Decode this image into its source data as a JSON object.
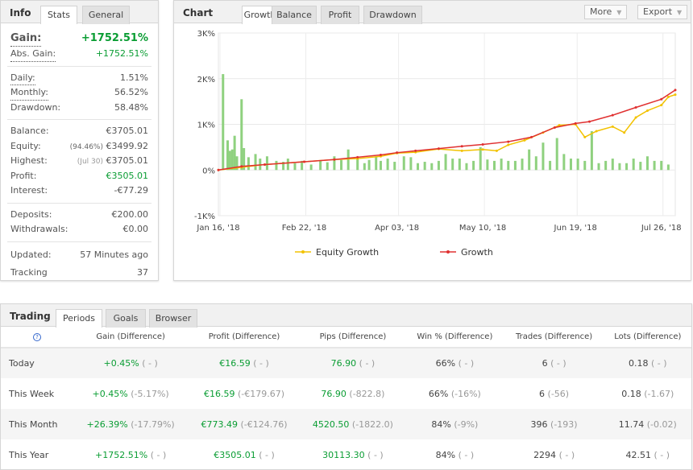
{
  "info": {
    "title": "Info",
    "tabs": [
      "Stats",
      "General"
    ],
    "gain_label": "Gain:",
    "gain": "+1752.51%",
    "abs_gain_label": "Abs. Gain:",
    "abs_gain": "+1752.51%",
    "daily_label": "Daily:",
    "daily": "1.51%",
    "monthly_label": "Monthly:",
    "monthly": "56.52%",
    "drawdown_label": "Drawdown:",
    "drawdown": "58.48%",
    "balance_label": "Balance:",
    "balance": "€3705.01",
    "equity_label": "Equity:",
    "equity_pct": "(94.46%)",
    "equity": "€3499.92",
    "highest_label": "Highest:",
    "highest_date": "(Jul 30)",
    "highest": "€3705.01",
    "profit_label": "Profit:",
    "profit": "€3505.01",
    "interest_label": "Interest:",
    "interest": "-€77.29",
    "deposits_label": "Deposits:",
    "deposits": "€200.00",
    "withdrawals_label": "Withdrawals:",
    "withdrawals": "€0.00",
    "updated_label": "Updated:",
    "updated": "57 Minutes ago",
    "tracking_label": "Tracking",
    "tracking": "37"
  },
  "chart": {
    "title": "Chart",
    "tabs": [
      "Growth",
      "Balance",
      "Profit",
      "Drawdown"
    ],
    "more": "More",
    "export": "Export"
  },
  "chart_data": {
    "type": "line",
    "ylim": [
      -1000,
      3000
    ],
    "yticks": [
      "3K%",
      "2K%",
      "1K%",
      "0%",
      "-1K%"
    ],
    "ytick_values": [
      3000,
      2000,
      1000,
      0,
      -1000
    ],
    "xticks": [
      "Jan 16, '18",
      "Feb 22, '18",
      "Apr 03, '18",
      "May 10, '18",
      "Jun 19, '18",
      "Jul 26, '18"
    ],
    "xtick_days": [
      0,
      37,
      77,
      114,
      154,
      191
    ],
    "xmax": 197,
    "colors": {
      "equity": "#f2c200",
      "growth": "#e03030",
      "bars": "#8fd17f"
    },
    "series": [
      {
        "name": "Equity Growth",
        "days": [
          0,
          10,
          20,
          37,
          50,
          60,
          70,
          77,
          85,
          95,
          105,
          114,
          120,
          125,
          132,
          140,
          147,
          154,
          158,
          163,
          170,
          175,
          180,
          185,
          191,
          194,
          197
        ],
        "values": [
          0,
          60,
          120,
          180,
          230,
          250,
          300,
          370,
          390,
          460,
          420,
          450,
          420,
          550,
          650,
          820,
          980,
          1000,
          720,
          850,
          950,
          820,
          1150,
          1300,
          1420,
          1600,
          1650
        ]
      },
      {
        "name": "Growth",
        "days": [
          0,
          10,
          20,
          37,
          50,
          60,
          70,
          77,
          85,
          95,
          105,
          114,
          125,
          135,
          145,
          154,
          160,
          170,
          180,
          191,
          197
        ],
        "values": [
          0,
          80,
          120,
          180,
          230,
          280,
          330,
          380,
          420,
          470,
          520,
          560,
          620,
          720,
          930,
          1020,
          1060,
          1200,
          1370,
          1550,
          1752
        ]
      }
    ],
    "bars": {
      "days": [
        2,
        4,
        5,
        6,
        7,
        8,
        10,
        11,
        13,
        16,
        18,
        21,
        25,
        28,
        30,
        33,
        36,
        40,
        44,
        47,
        50,
        53,
        56,
        60,
        63,
        65,
        68,
        70,
        73,
        76,
        80,
        83,
        86,
        89,
        92,
        95,
        98,
        101,
        104,
        107,
        110,
        113,
        116,
        119,
        122,
        125,
        128,
        131,
        134,
        137,
        140,
        143,
        146,
        149,
        152,
        155,
        158,
        161,
        164,
        167,
        170,
        173,
        176,
        179,
        182,
        185,
        188,
        191,
        194
      ],
      "values": [
        2100,
        650,
        420,
        450,
        750,
        300,
        1550,
        480,
        280,
        350,
        250,
        300,
        200,
        180,
        250,
        150,
        200,
        120,
        200,
        170,
        300,
        220,
        450,
        250,
        150,
        220,
        300,
        200,
        250,
        180,
        300,
        280,
        150,
        180,
        150,
        200,
        350,
        250,
        250,
        150,
        200,
        500,
        230,
        200,
        250,
        200,
        200,
        250,
        450,
        300,
        600,
        200,
        700,
        350,
        250,
        250,
        200,
        850,
        150,
        200,
        250,
        150,
        150,
        250,
        180,
        300,
        200,
        200,
        120
      ]
    },
    "legend": [
      "Equity Growth",
      "Growth"
    ]
  },
  "trading": {
    "title": "Trading",
    "tabs": [
      "Periods",
      "Goals",
      "Browser"
    ],
    "help": "?",
    "columns": [
      "Gain (Difference)",
      "Profit (Difference)",
      "Pips (Difference)",
      "Win % (Difference)",
      "Trades (Difference)",
      "Lots (Difference)"
    ],
    "rows": [
      {
        "period": "Today",
        "gain": "+0.45%",
        "gain_d": "( - )",
        "profit": "€16.59",
        "profit_d": "( - )",
        "pips": "76.90",
        "pips_d": "( - )",
        "win": "66%",
        "win_d": "( - )",
        "trades": "6",
        "trades_d": "( - )",
        "lots": "0.18",
        "lots_d": "( - )"
      },
      {
        "period": "This Week",
        "gain": "+0.45%",
        "gain_d": "(-5.17%)",
        "profit": "€16.59",
        "profit_d": "(-€179.67)",
        "pips": "76.90",
        "pips_d": "(-822.8)",
        "win": "66%",
        "win_d": "(-16%)",
        "trades": "6",
        "trades_d": "(-56)",
        "lots": "0.18",
        "lots_d": "(-1.67)"
      },
      {
        "period": "This Month",
        "gain": "+26.39%",
        "gain_d": "(-17.79%)",
        "profit": "€773.49",
        "profit_d": "(-€124.76)",
        "pips": "4520.50",
        "pips_d": "(-1822.0)",
        "win": "84%",
        "win_d": "(-9%)",
        "trades": "396",
        "trades_d": "(-193)",
        "lots": "11.74",
        "lots_d": "(-0.02)"
      },
      {
        "period": "This Year",
        "gain": "+1752.51%",
        "gain_d": "( - )",
        "profit": "€3505.01",
        "profit_d": "( - )",
        "pips": "30113.30",
        "pips_d": "( - )",
        "win": "84%",
        "win_d": "( - )",
        "trades": "2294",
        "trades_d": "( - )",
        "lots": "42.51",
        "lots_d": "( - )"
      }
    ]
  }
}
